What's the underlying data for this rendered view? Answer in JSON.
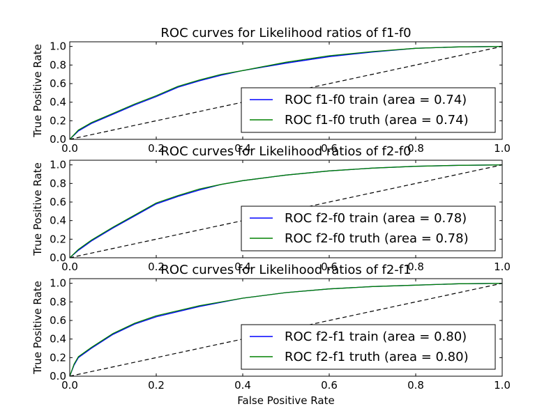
{
  "chart_data": [
    {
      "type": "line",
      "title": "ROC curves for Likelihood ratios of f1-f0",
      "xlabel": "",
      "ylabel": "True Positive Rate",
      "xlim": [
        0,
        1
      ],
      "ylim": [
        0,
        1.05
      ],
      "xticks": [
        "0.0",
        "0.2",
        "0.4",
        "0.6",
        "0.8",
        "1.0"
      ],
      "yticks": [
        "0.0",
        "0.2",
        "0.4",
        "0.6",
        "0.8",
        "1.0"
      ],
      "legend_position": "lower-right",
      "diagonal": {
        "x": [
          0,
          1
        ],
        "y": [
          0,
          1
        ],
        "style": "dashed",
        "color": "#000000"
      },
      "series": [
        {
          "name": "ROC f1-f0 train (area = 0.74)",
          "color": "#0000ff",
          "x": [
            0,
            0.02,
            0.05,
            0.1,
            0.15,
            0.2,
            0.25,
            0.3,
            0.35,
            0.4,
            0.5,
            0.6,
            0.7,
            0.8,
            0.9,
            1.0
          ],
          "y": [
            0,
            0.09,
            0.17,
            0.27,
            0.37,
            0.46,
            0.56,
            0.63,
            0.69,
            0.74,
            0.82,
            0.89,
            0.94,
            0.98,
            0.995,
            1.0
          ]
        },
        {
          "name": "ROC f1-f0 truth (area = 0.74)",
          "color": "#008000",
          "x": [
            0,
            0.02,
            0.05,
            0.1,
            0.15,
            0.2,
            0.25,
            0.3,
            0.35,
            0.4,
            0.5,
            0.6,
            0.7,
            0.8,
            0.9,
            1.0
          ],
          "y": [
            0,
            0.1,
            0.18,
            0.28,
            0.38,
            0.47,
            0.57,
            0.64,
            0.7,
            0.74,
            0.83,
            0.9,
            0.945,
            0.98,
            0.995,
            1.0
          ]
        }
      ]
    },
    {
      "type": "line",
      "title": "ROC curves for Likelihood ratios of f2-f0",
      "xlabel": "",
      "ylabel": "True Positive Rate",
      "xlim": [
        0,
        1
      ],
      "ylim": [
        0,
        1.05
      ],
      "xticks": [
        "0.0",
        "0.2",
        "0.4",
        "0.6",
        "0.8",
        "1.0"
      ],
      "yticks": [
        "0.0",
        "0.2",
        "0.4",
        "0.6",
        "0.8",
        "1.0"
      ],
      "legend_position": "lower-right",
      "diagonal": {
        "x": [
          0,
          1
        ],
        "y": [
          0,
          1
        ],
        "style": "dashed",
        "color": "#000000"
      },
      "series": [
        {
          "name": "ROC f2-f0 train (area = 0.78)",
          "color": "#0000ff",
          "x": [
            0,
            0.02,
            0.05,
            0.1,
            0.15,
            0.2,
            0.25,
            0.3,
            0.35,
            0.4,
            0.5,
            0.6,
            0.7,
            0.8,
            0.9,
            1.0
          ],
          "y": [
            0,
            0.08,
            0.18,
            0.32,
            0.45,
            0.58,
            0.66,
            0.73,
            0.79,
            0.83,
            0.89,
            0.935,
            0.965,
            0.985,
            0.995,
            1.0
          ]
        },
        {
          "name": "ROC f2-f0 truth (area = 0.78)",
          "color": "#008000",
          "x": [
            0,
            0.02,
            0.05,
            0.1,
            0.15,
            0.2,
            0.25,
            0.3,
            0.35,
            0.4,
            0.5,
            0.6,
            0.7,
            0.8,
            0.9,
            1.0
          ],
          "y": [
            0,
            0.09,
            0.19,
            0.33,
            0.46,
            0.59,
            0.67,
            0.74,
            0.79,
            0.83,
            0.89,
            0.935,
            0.965,
            0.985,
            0.995,
            1.0
          ]
        }
      ]
    },
    {
      "type": "line",
      "title": "ROC curves for Likelihood ratios of f2-f1",
      "xlabel": "False Positive Rate",
      "ylabel": "True Positive Rate",
      "xlim": [
        0,
        1
      ],
      "ylim": [
        0,
        1.05
      ],
      "xticks": [
        "0.0",
        "0.2",
        "0.4",
        "0.6",
        "0.8",
        "1.0"
      ],
      "yticks": [
        "0.0",
        "0.2",
        "0.4",
        "0.6",
        "0.8",
        "1.0"
      ],
      "legend_position": "lower-right",
      "diagonal": {
        "x": [
          0,
          1
        ],
        "y": [
          0,
          1
        ],
        "style": "dashed",
        "color": "#000000"
      },
      "series": [
        {
          "name": "ROC f2-f1 train (area = 0.80)",
          "color": "#0000ff",
          "x": [
            0,
            0.01,
            0.02,
            0.05,
            0.1,
            0.15,
            0.2,
            0.3,
            0.4,
            0.5,
            0.6,
            0.7,
            0.8,
            0.9,
            1.0
          ],
          "y": [
            0,
            0.12,
            0.2,
            0.3,
            0.45,
            0.56,
            0.64,
            0.75,
            0.84,
            0.9,
            0.94,
            0.965,
            0.98,
            0.995,
            1.0
          ]
        },
        {
          "name": "ROC f2-f1 truth (area = 0.80)",
          "color": "#008000",
          "x": [
            0,
            0.01,
            0.02,
            0.05,
            0.1,
            0.15,
            0.2,
            0.3,
            0.4,
            0.5,
            0.6,
            0.7,
            0.8,
            0.9,
            1.0
          ],
          "y": [
            0,
            0.13,
            0.21,
            0.31,
            0.46,
            0.57,
            0.65,
            0.76,
            0.84,
            0.9,
            0.94,
            0.965,
            0.98,
            0.995,
            1.0
          ]
        }
      ]
    }
  ]
}
